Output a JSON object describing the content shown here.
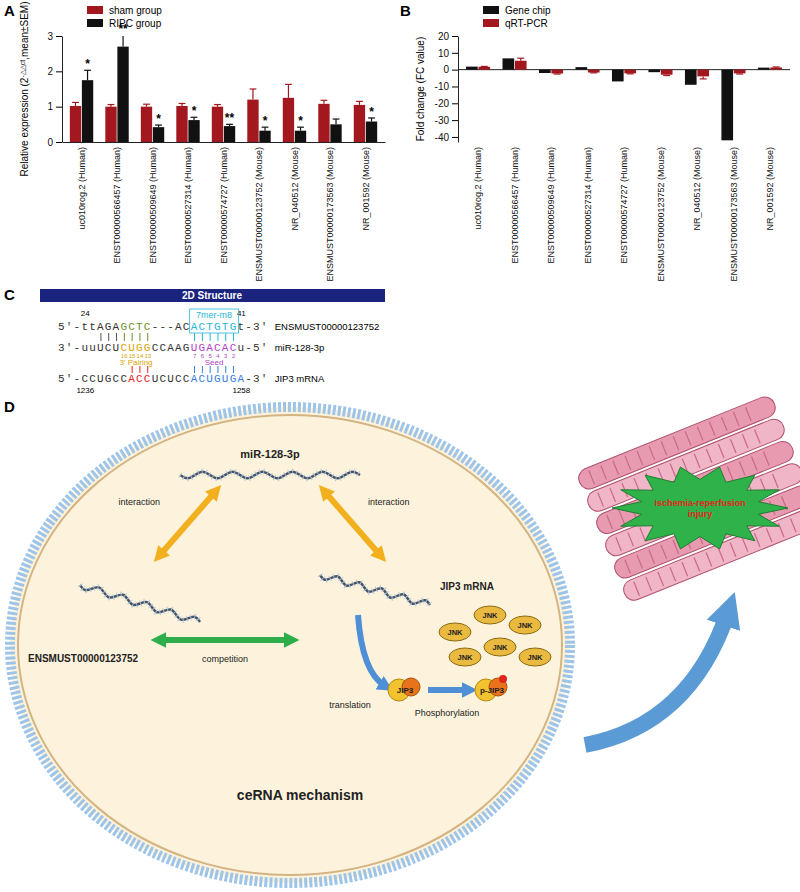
{
  "chart_data": [
    {
      "type": "bar",
      "ylabel": [
        "Relative expression (2",
        "-△△ct",
        ",mean±SEM)"
      ],
      "categories": [
        "uc010rog.2 (Human)",
        "ENST00000566457 (Human)",
        "ENST00000509649 (Human)",
        "ENST00000527314 (Human)",
        "ENST00000574727 (Human)",
        "ENSMUST00000123752 (Mouse)",
        "NR_040512 (Mouse)",
        "ENSMUST00000173563 (Mouse)",
        "NR_001592 (Mouse)"
      ],
      "series": [
        {
          "name": "sham group",
          "color": "#a3171e",
          "values": [
            1.02,
            1.0,
            1.0,
            1.02,
            1.0,
            1.2,
            1.25,
            1.08,
            1.05
          ],
          "errors": [
            0.1,
            0.06,
            0.07,
            0.07,
            0.06,
            0.3,
            0.38,
            0.1,
            0.1
          ]
        },
        {
          "name": "RIPC group",
          "color": "#111111",
          "values": [
            1.75,
            2.7,
            0.42,
            0.62,
            0.45,
            0.32,
            0.32,
            0.5,
            0.58
          ],
          "errors": [
            0.28,
            0.32,
            0.06,
            0.08,
            0.05,
            0.1,
            0.1,
            0.15,
            0.1
          ],
          "significance": [
            "*",
            "**",
            "*",
            "*",
            "**",
            "*",
            "*",
            null,
            "*"
          ]
        }
      ],
      "ylim": [
        0,
        3
      ],
      "yticks": [
        0,
        1,
        2,
        3
      ],
      "legend": "upper left"
    },
    {
      "type": "bar",
      "ylabel": "Fold change (FC value)",
      "categories": [
        "uc010rog.2 (Human)",
        "ENST00000566457 (Human)",
        "ENST00000509649 (Human)",
        "ENST00000527314 (Human)",
        "ENST00000574727 (Human)",
        "ENSMUST00000123752 (Mouse)",
        "NR_040512 (Mouse)",
        "ENSMUST00000173563 (Mouse)",
        "NR_001592 (Mouse)"
      ],
      "series": [
        {
          "name": "Gene chip",
          "color": "#111111",
          "values": [
            1.8,
            6.7,
            -2.0,
            1.5,
            -7.0,
            -1.5,
            -9.0,
            -42.0,
            1.2
          ]
        },
        {
          "name": "qRT-PCR",
          "color": "#a3171e",
          "values": [
            1.7,
            5.3,
            -2.3,
            -1.7,
            -2.2,
            -3.0,
            -4.0,
            -2.2,
            1.3
          ],
          "errors": [
            0.2,
            1.5,
            0.3,
            0.2,
            0.3,
            0.5,
            1.5,
            0.4,
            0.3
          ]
        }
      ],
      "ylim": [
        -43,
        20
      ],
      "yticks": [
        -40,
        -30,
        -20,
        -10,
        0,
        10,
        20
      ],
      "legend": "upper left"
    }
  ],
  "panel_labels": [
    "A",
    "B",
    "C",
    "D"
  ],
  "structure_2d": {
    "title": "2D Structure",
    "start": 24,
    "end": 41,
    "site_type": "7mer-m8",
    "rows": [
      {
        "name": "ENSMUST00000123752",
        "segments": [
          "5'-ttAGA",
          "GCTC",
          "---AC",
          "ACTGTG",
          "t-3'"
        ]
      },
      {
        "name": "miR-128-3p",
        "segments": [
          "3'-uuUCU",
          "CUGG",
          "CCAAG",
          "UGACAC",
          "u-5'"
        ]
      },
      {
        "name": "JIP3 mRNA",
        "segments": [
          "5'-CCUGCC",
          "ACC",
          "UCUCC",
          "ACUGUGA",
          "-3'"
        ]
      }
    ],
    "pairing_numbers": [
      16,
      15,
      14,
      13
    ],
    "seed_numbers": [
      7,
      6,
      5,
      4,
      3,
      2
    ],
    "pairing_label": "3' Pairing",
    "seed_label": "Seed",
    "mrna_start": 1236,
    "mrna_end": 1258
  },
  "mechanism": {
    "mirna": "miR-128-3p",
    "lncrna": "ENSMUST00000123752",
    "mrna": "JIP3 mRNA",
    "interaction_labels": [
      "interaction",
      "interaction"
    ],
    "competition": "competition",
    "translation": "translation",
    "protein": "JIP3",
    "phospho_protein": "p-JIP3",
    "phosphorylation": "Phosphorylation",
    "kinases": [
      "JNK",
      "JNK",
      "JNK",
      "JNK",
      "JNK",
      "JNK"
    ],
    "title": "ceRNA mechanism",
    "outcome": [
      "Ischemia-reperfusion",
      "injury"
    ]
  }
}
